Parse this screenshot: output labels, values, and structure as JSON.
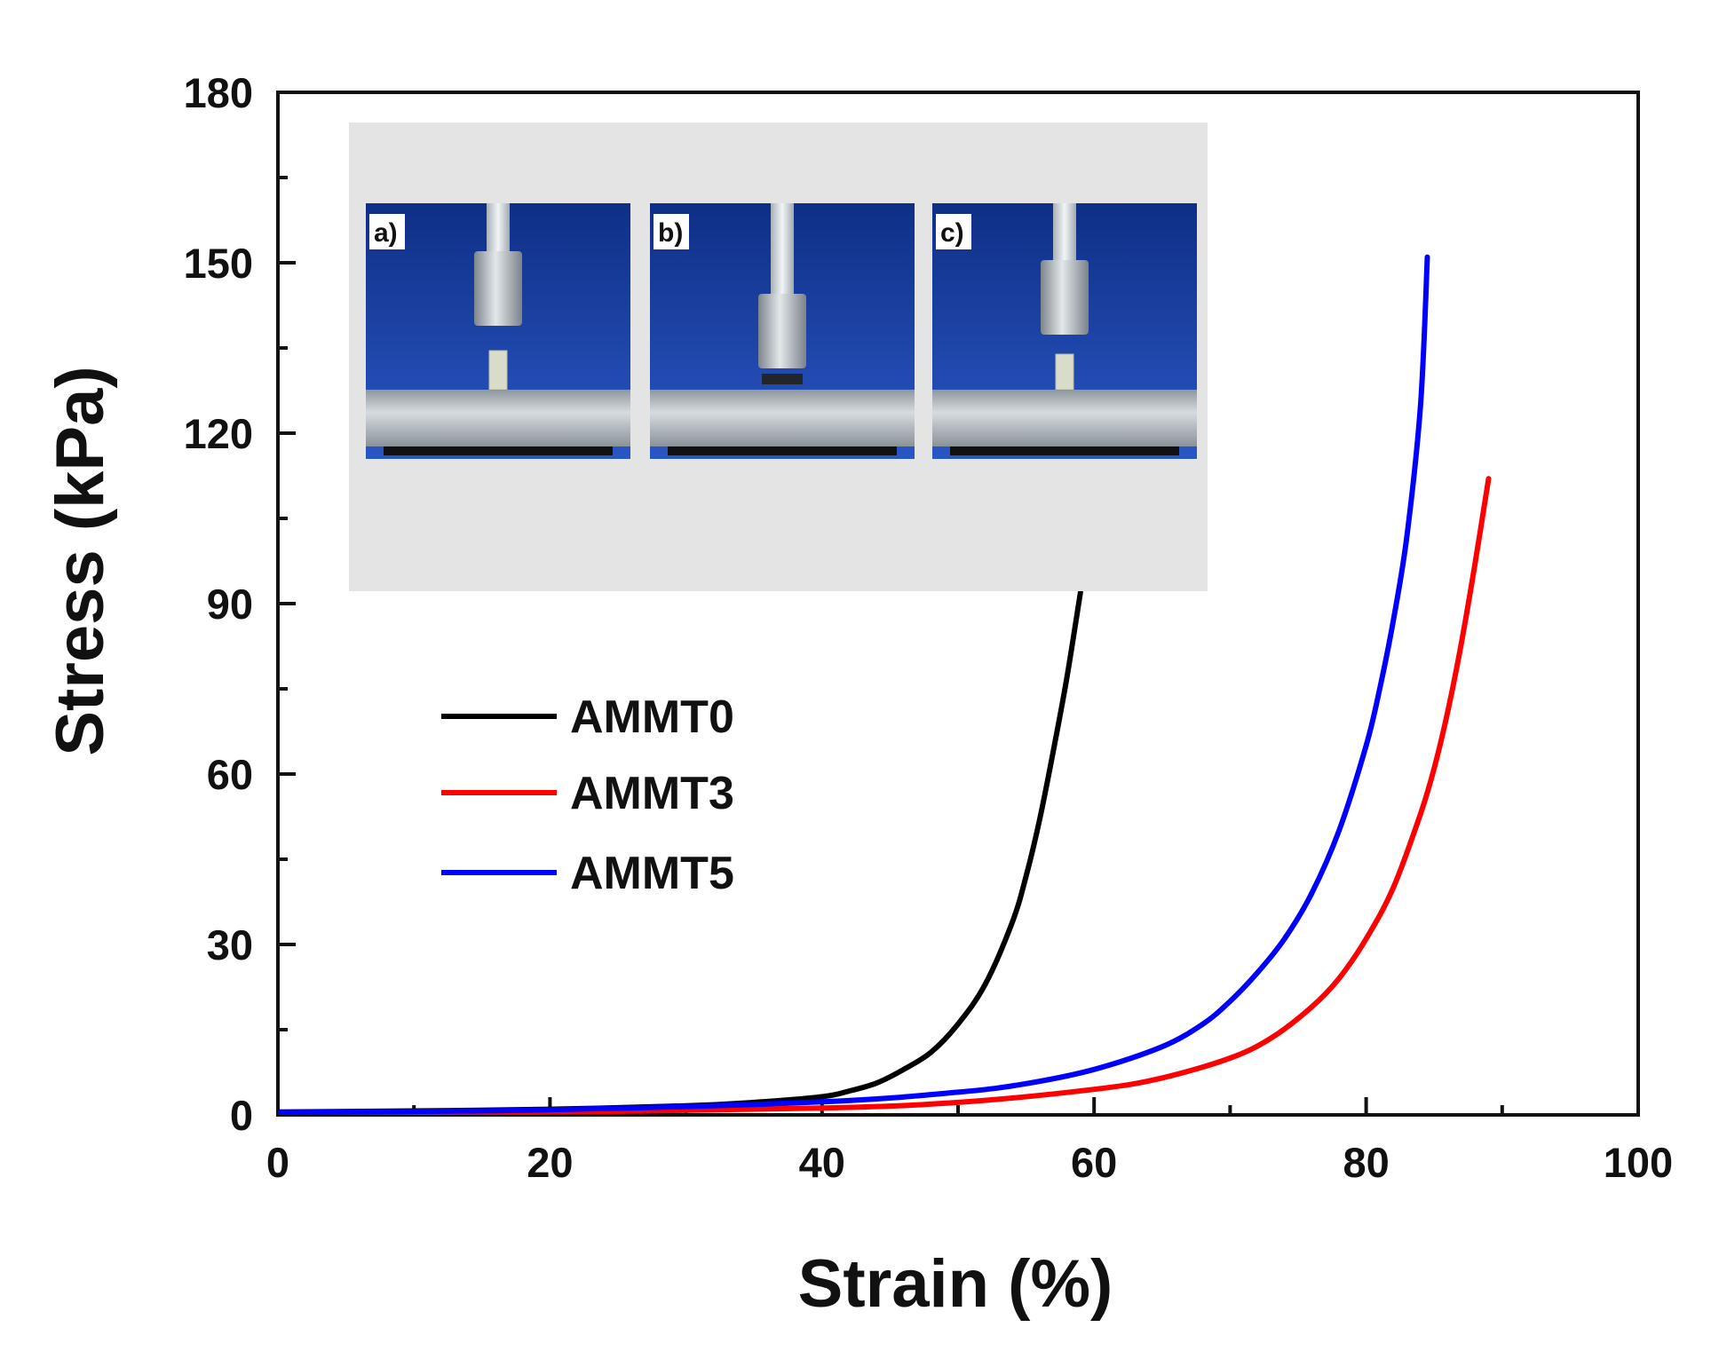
{
  "chart_data": {
    "type": "line",
    "title": "",
    "xlabel": "Strain (%)",
    "ylabel": "Stress (kPa)",
    "xlim": [
      0,
      100
    ],
    "ylim": [
      0,
      180
    ],
    "xticks": [
      0,
      20,
      40,
      60,
      80,
      100
    ],
    "yticks": [
      0,
      30,
      60,
      90,
      120,
      150,
      180
    ],
    "grid": false,
    "legend_position": "center-left",
    "series": [
      {
        "name": "AMMT0",
        "color": "#000000",
        "x": [
          0,
          10,
          20,
          30,
          35,
          40,
          42,
          44,
          46,
          48,
          50,
          52,
          54,
          55,
          56,
          57,
          58,
          59
        ],
        "y": [
          0.5,
          0.7,
          1.0,
          1.6,
          2.2,
          3.2,
          4.2,
          5.6,
          8,
          11,
          16,
          23,
          34,
          42,
          52,
          64,
          77,
          92
        ]
      },
      {
        "name": "AMMT3",
        "color": "#ff0000",
        "x": [
          0,
          20,
          40,
          50,
          60,
          65,
          70,
          73,
          76,
          78,
          80,
          82,
          84,
          85,
          86,
          87,
          88,
          89
        ],
        "y": [
          0.2,
          0.5,
          1.2,
          2.2,
          4.5,
          6.5,
          10,
          13.5,
          19,
          24,
          31,
          40,
          53,
          61,
          71,
          83,
          97,
          112
        ]
      },
      {
        "name": "AMMT5",
        "color": "#0000ff",
        "x": [
          0,
          20,
          40,
          50,
          55,
          60,
          65,
          68,
          70,
          72,
          74,
          76,
          78,
          80,
          81,
          82,
          83,
          84,
          84.5
        ],
        "y": [
          0.4,
          0.9,
          2.3,
          4,
          5.5,
          8,
          12,
          16,
          20,
          25,
          31,
          39,
          50,
          65,
          75,
          87,
          102,
          125,
          151
        ]
      }
    ],
    "inset": {
      "description": "photographs of compression test",
      "panels": [
        "a)",
        "b)",
        "c)"
      ]
    }
  }
}
